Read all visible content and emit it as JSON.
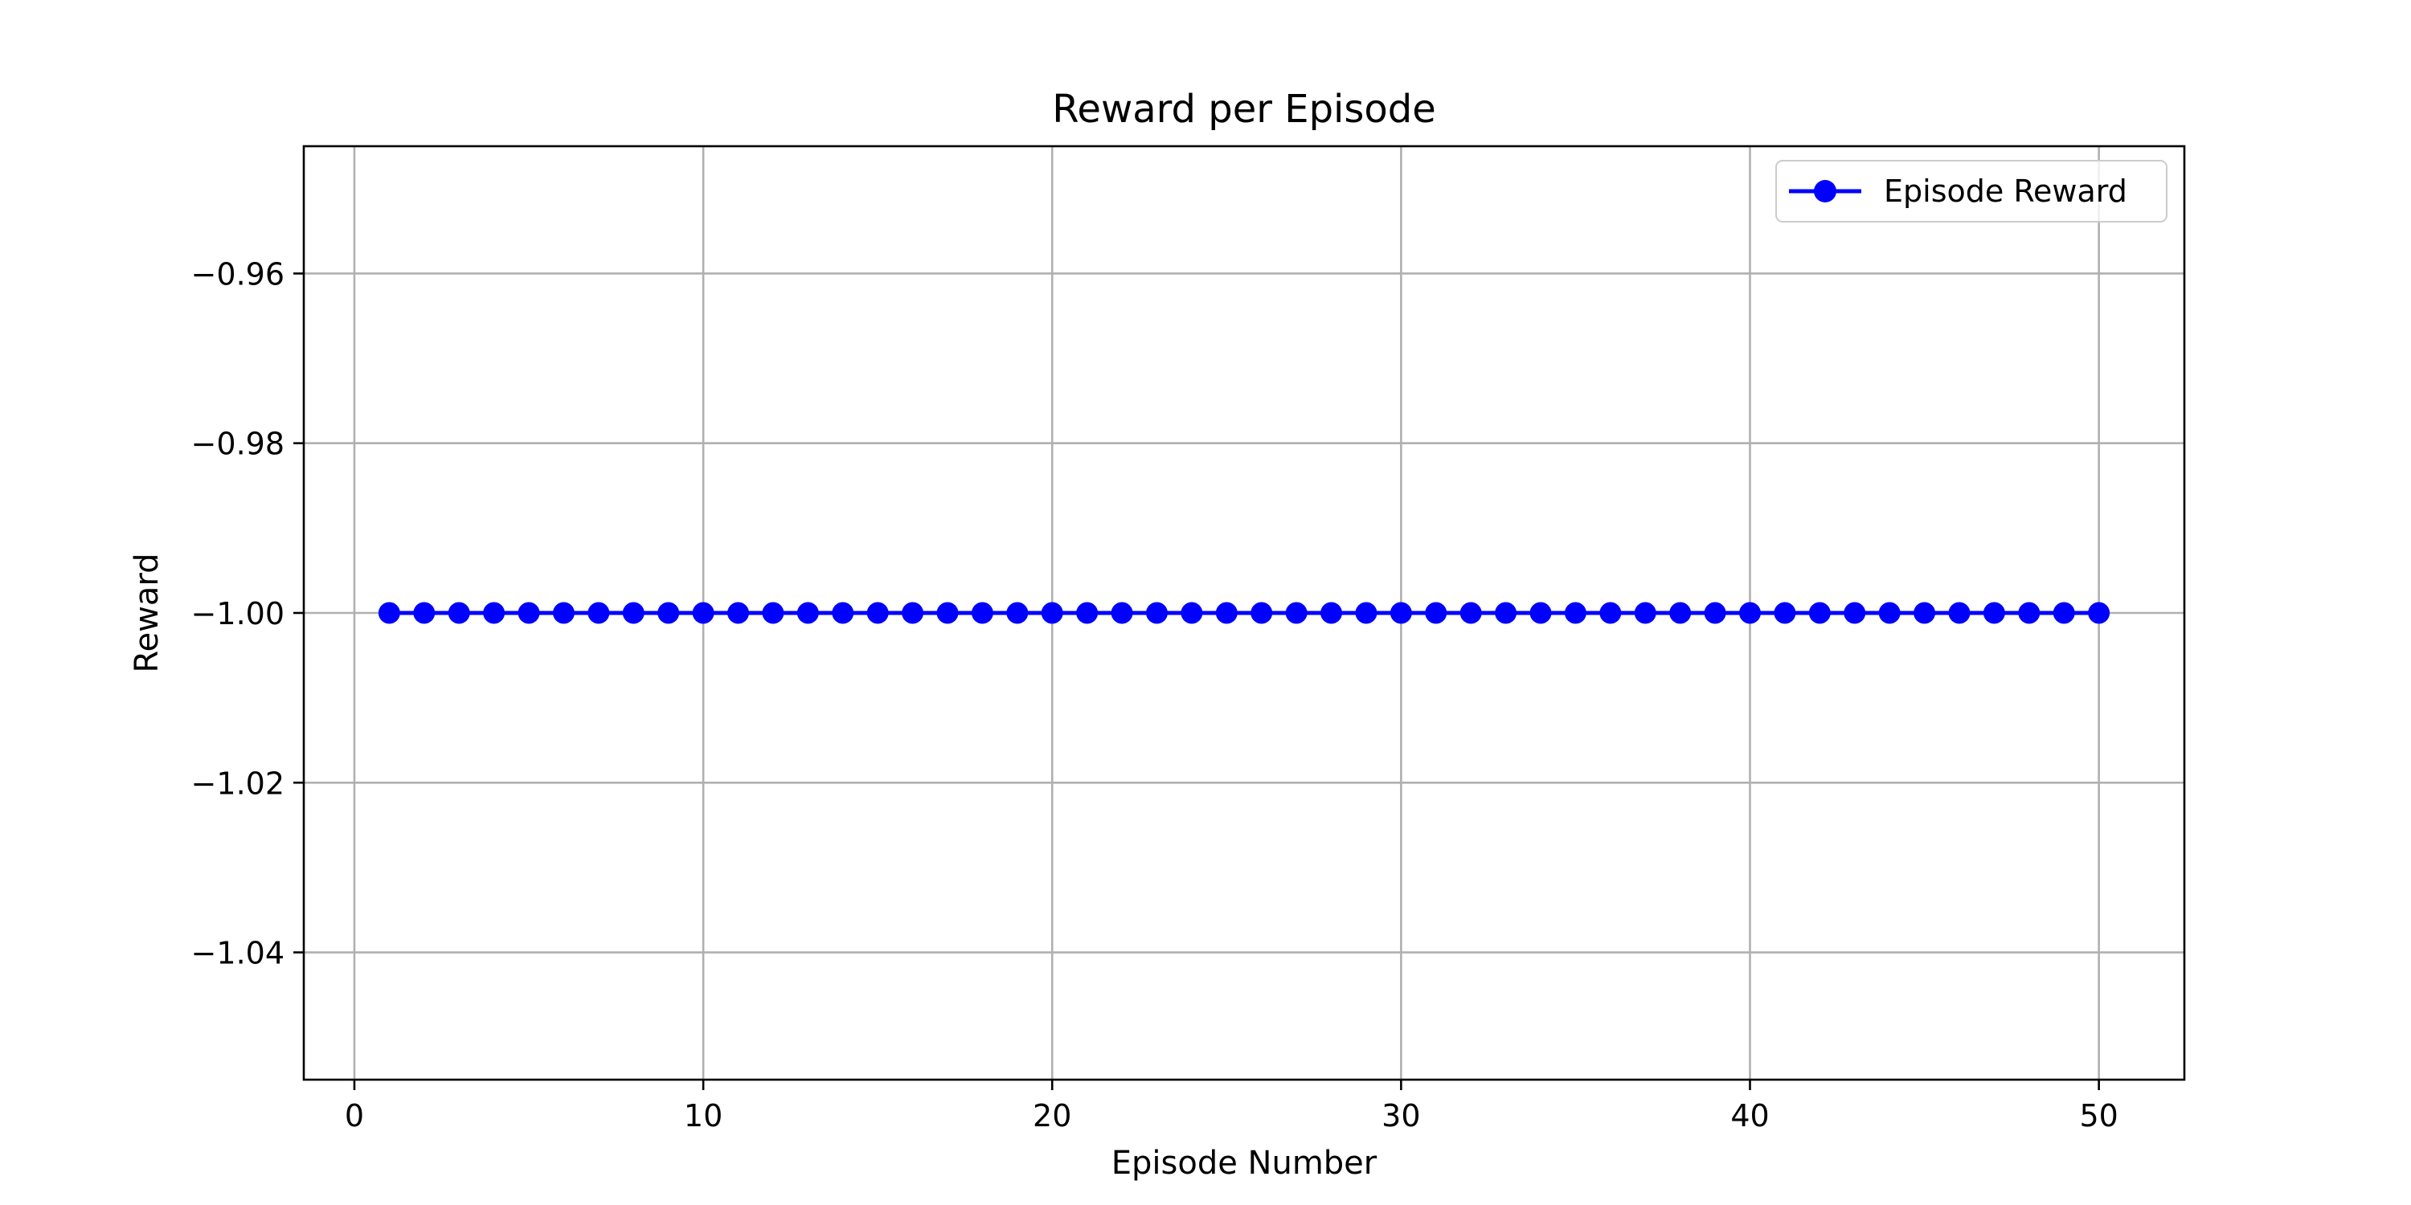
{
  "chart_data": {
    "type": "line",
    "title": "Reward per Episode",
    "xlabel": "Episode Number",
    "ylabel": "Reward",
    "xlim": [
      -1.45,
      52.45
    ],
    "ylim": [
      -1.055,
      -0.945
    ],
    "xticks": [
      0,
      10,
      20,
      30,
      40,
      50
    ],
    "xtick_labels": [
      "0",
      "10",
      "20",
      "30",
      "40",
      "50"
    ],
    "yticks": [
      -0.96,
      -0.98,
      -1.0,
      -1.02,
      -1.04
    ],
    "ytick_labels": [
      "−0.96",
      "−0.98",
      "−1.00",
      "−1.02",
      "−1.04"
    ],
    "grid": true,
    "legend_position": "top-right",
    "series": [
      {
        "name": "Episode Reward",
        "color": "#0000ff",
        "marker": "circle",
        "x": [
          1,
          2,
          3,
          4,
          5,
          6,
          7,
          8,
          9,
          10,
          11,
          12,
          13,
          14,
          15,
          16,
          17,
          18,
          19,
          20,
          21,
          22,
          23,
          24,
          25,
          26,
          27,
          28,
          29,
          30,
          31,
          32,
          33,
          34,
          35,
          36,
          37,
          38,
          39,
          40,
          41,
          42,
          43,
          44,
          45,
          46,
          47,
          48,
          49,
          50
        ],
        "y": [
          -1,
          -1,
          -1,
          -1,
          -1,
          -1,
          -1,
          -1,
          -1,
          -1,
          -1,
          -1,
          -1,
          -1,
          -1,
          -1,
          -1,
          -1,
          -1,
          -1,
          -1,
          -1,
          -1,
          -1,
          -1,
          -1,
          -1,
          -1,
          -1,
          -1,
          -1,
          -1,
          -1,
          -1,
          -1,
          -1,
          -1,
          -1,
          -1,
          -1,
          -1,
          -1,
          -1,
          -1,
          -1,
          -1,
          -1,
          -1,
          -1,
          -1
        ]
      }
    ]
  },
  "colors": {
    "grid": "#b0b0b0",
    "axes": "#000000",
    "legend_border": "#cccccc"
  }
}
